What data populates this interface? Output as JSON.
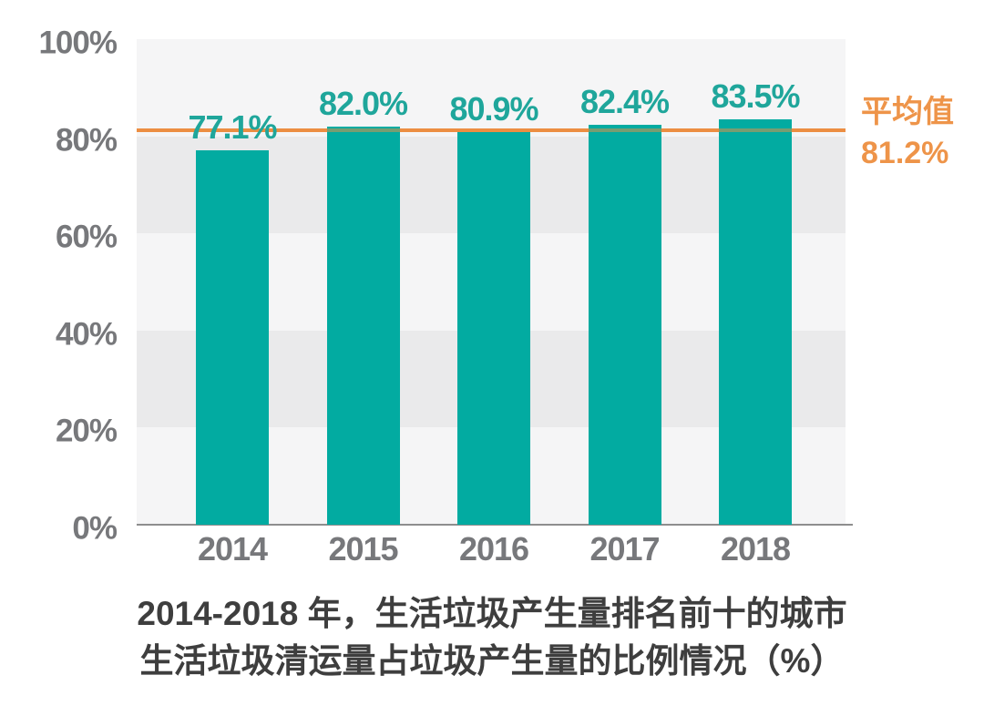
{
  "chart_data": {
    "type": "bar",
    "title_lines": [
      "2014-2018 年，生活垃圾产生量排名前十的城市",
      "生活垃圾清运量占垃圾产生量的比例情况（%）"
    ],
    "categories": [
      "2014",
      "2015",
      "2016",
      "2017",
      "2018"
    ],
    "values": [
      77.1,
      82.0,
      80.9,
      82.4,
      83.5
    ],
    "value_labels": [
      "77.1%",
      "82.0%",
      "80.9%",
      "82.4%",
      "83.5%"
    ],
    "average": {
      "label": "平均值",
      "value": 81.2,
      "value_label": "81.2%"
    },
    "y_axis": {
      "ticks": [
        "100%",
        "80%",
        "60%",
        "40%",
        "20%",
        "0%"
      ],
      "tick_values": [
        100,
        80,
        60,
        40,
        20,
        0
      ],
      "ylim": [
        0,
        100
      ]
    },
    "xlabel": "",
    "ylabel": "",
    "legend": "none",
    "grid": "banded-horizontal",
    "colors": {
      "bar": "#02ABA1",
      "value_label": "#1FA69B",
      "average_line": "#EC8E42",
      "average_label": "#EE9449",
      "axis_text": "#77787B",
      "title_text": "#3E3E3E",
      "band_light": "#F5F5F6",
      "band_dark": "#EAEAEB",
      "baseline": "#8E8E8E",
      "background": "#FFFFFF"
    }
  }
}
